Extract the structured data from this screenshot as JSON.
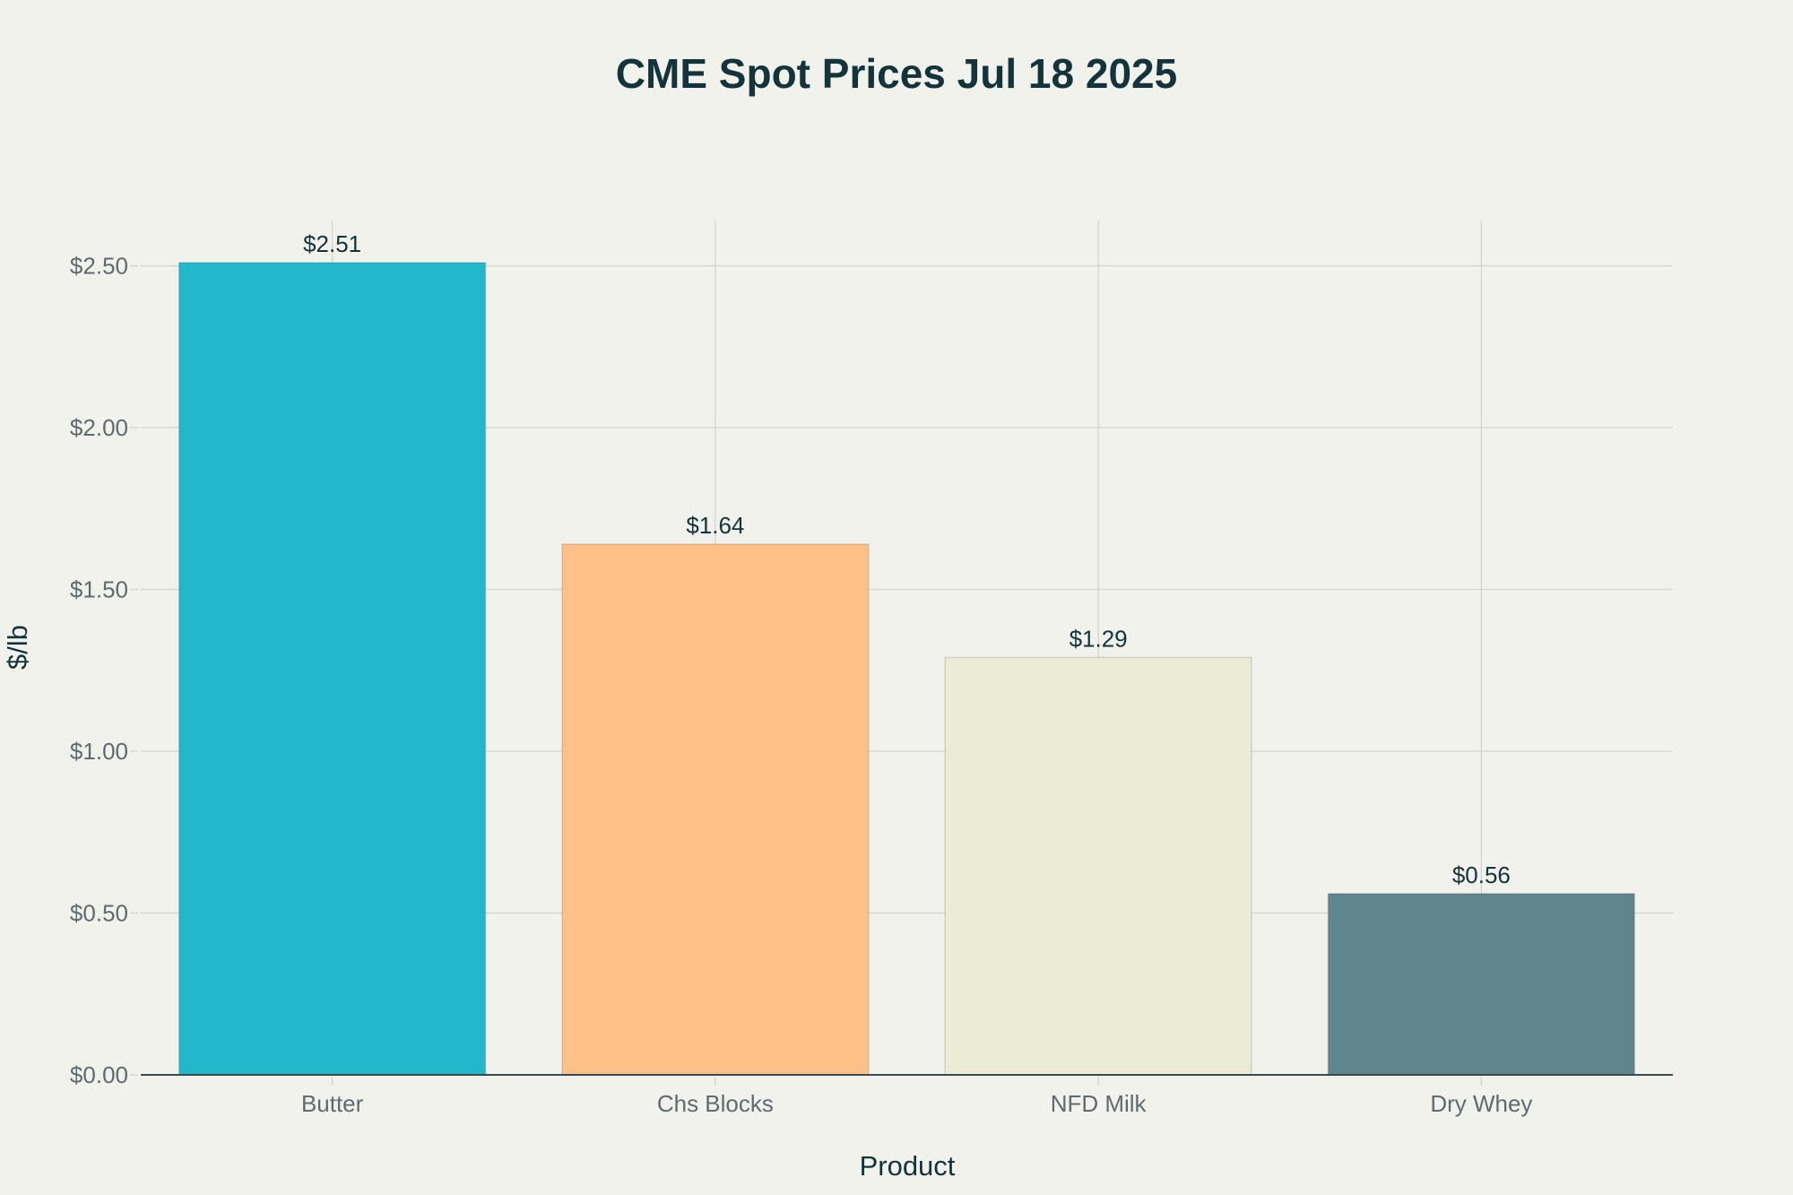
{
  "chart_data": {
    "type": "bar",
    "title": "CME Spot Prices Jul 18 2025",
    "xlabel": "Product",
    "ylabel": "$/lb",
    "categories": [
      "Butter",
      "Chs Blocks",
      "NFD Milk",
      "Dry Whey"
    ],
    "values": [
      2.51,
      1.64,
      1.29,
      0.56
    ],
    "data_labels": [
      "$2.51",
      "$1.64",
      "$1.29",
      "$0.56"
    ],
    "colors": [
      "#21B8CC",
      "#FDC086",
      "#EBEBD6",
      "#5F868C"
    ],
    "yticks": [
      0,
      0.5,
      1.0,
      1.5,
      2.0,
      2.5
    ],
    "ytick_labels": [
      "$0.00",
      "$0.50",
      "$1.00",
      "$1.50",
      "$2.00",
      "$2.50"
    ],
    "ylim": [
      0,
      2.64
    ],
    "grid": true,
    "legend": "none"
  }
}
